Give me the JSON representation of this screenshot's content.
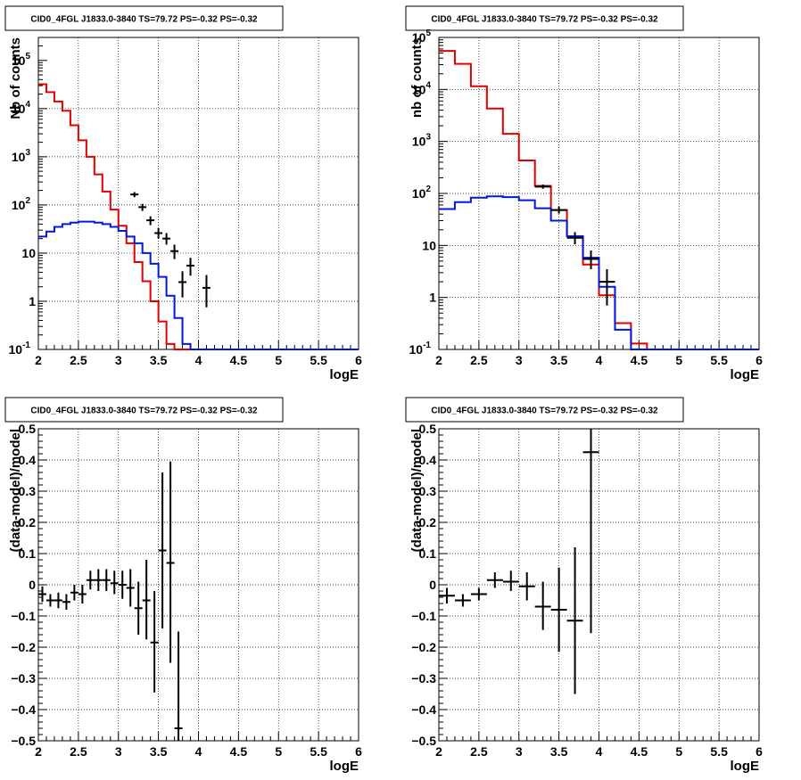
{
  "colors": {
    "data": "#000000",
    "model": "#e00000",
    "component": "#0018e0",
    "grid": "#000000"
  },
  "chart_data": [
    {
      "type": "line",
      "title": "CID0_4FGL J1833.0-3840 TS=79.72 PS=-0.32 PS=-0.32",
      "xlabel": "logE",
      "ylabel": "Nb of counts",
      "xlim": [
        2,
        6
      ],
      "ylim": [
        0.1,
        300000
      ],
      "yscale": "log",
      "grid": true,
      "x_ticks": [
        "2",
        "2.5",
        "3",
        "3.5",
        "4",
        "4.5",
        "5",
        "5.5",
        "6"
      ],
      "y_ticks": [
        {
          "base": "10",
          "exp": "-1"
        },
        {
          "base": "1",
          "exp": ""
        },
        {
          "base": "10",
          "exp": ""
        },
        {
          "base": "10",
          "exp": "2"
        },
        {
          "base": "10",
          "exp": "3"
        },
        {
          "base": "10",
          "exp": "4"
        },
        {
          "base": "10",
          "exp": "5"
        }
      ],
      "bin_edges": [
        2.0,
        2.1,
        2.2,
        2.3,
        2.4,
        2.5,
        2.6,
        2.7,
        2.8,
        2.9,
        3.0,
        3.1,
        3.2,
        3.3,
        3.4,
        3.5,
        3.6,
        3.7,
        3.8,
        3.9,
        4.0,
        4.1,
        4.2,
        4.3,
        4.4,
        4.5,
        4.6,
        4.7,
        4.8,
        4.9,
        5.0,
        5.1,
        5.2,
        5.3,
        5.4,
        5.5,
        5.6,
        5.7,
        5.8,
        5.9,
        6.0
      ],
      "series": [
        {
          "values": [
            32000,
            22000,
            14000,
            9000,
            4500,
            2200,
            1000,
            430,
            190,
            80,
            37,
            16,
            6.5,
            2.6,
            1.0,
            0.38,
            0.13,
            0.1,
            0.1,
            0.1,
            0.1,
            0.1,
            0.1,
            0.1,
            0.1,
            0.1,
            0.1,
            0.1,
            0.1,
            0.1,
            0.1,
            0.1,
            0.1,
            0.1,
            0.1,
            0.1,
            0.1,
            0.1,
            0.1,
            0.1
          ],
          "role": "model"
        },
        {
          "values": [
            22,
            28,
            35,
            40,
            43,
            45,
            45,
            43,
            40,
            35,
            29,
            22,
            16,
            10,
            6,
            3.2,
            1.3,
            0.45,
            0.13,
            0.1,
            0.1,
            0.1,
            0.1,
            0.1,
            0.1,
            0.1,
            0.1,
            0.1,
            0.1,
            0.1,
            0.1,
            0.1,
            0.1,
            0.1,
            0.1,
            0.1,
            0.1,
            0.1,
            0.1,
            0.1
          ],
          "role": "component"
        }
      ],
      "points": [
        {
          "x": 3.2,
          "y": 165,
          "lo": 145,
          "hi": 185
        },
        {
          "x": 3.3,
          "y": 90,
          "lo": 75,
          "hi": 105
        },
        {
          "x": 3.4,
          "y": 48,
          "lo": 38,
          "hi": 58
        },
        {
          "x": 3.5,
          "y": 26,
          "lo": 20,
          "hi": 33
        },
        {
          "x": 3.6,
          "y": 20,
          "lo": 15,
          "hi": 26
        },
        {
          "x": 3.7,
          "y": 11,
          "lo": 7.5,
          "hi": 15
        },
        {
          "x": 3.8,
          "y": 2.5,
          "lo": 1.2,
          "hi": 4.2
        },
        {
          "x": 3.9,
          "y": 5.5,
          "lo": 3.4,
          "hi": 8
        },
        {
          "x": 4.1,
          "y": 1.9,
          "lo": 0.75,
          "hi": 3.5
        }
      ]
    },
    {
      "type": "line",
      "title": "CID0_4FGL J1833.0-3840 TS=79.72 PS=-0.32 PS=-0.32",
      "xlabel": "logE",
      "ylabel": "nb of counts",
      "xlim": [
        2,
        6
      ],
      "ylim": [
        0.1,
        100000
      ],
      "yscale": "log",
      "grid": true,
      "x_ticks": [
        "2",
        "2.5",
        "3",
        "3.5",
        "4",
        "4.5",
        "5",
        "5.5",
        "6"
      ],
      "y_ticks": [
        {
          "base": "10",
          "exp": "-1"
        },
        {
          "base": "1",
          "exp": ""
        },
        {
          "base": "10",
          "exp": ""
        },
        {
          "base": "10",
          "exp": "2"
        },
        {
          "base": "10",
          "exp": "3"
        },
        {
          "base": "10",
          "exp": "4"
        },
        {
          "base": "10",
          "exp": "5"
        }
      ],
      "bin_edges": [
        2.0,
        2.2,
        2.4,
        2.6,
        2.8,
        3.0,
        3.2,
        3.4,
        3.6,
        3.8,
        4.0,
        4.2,
        4.4,
        4.6,
        4.8,
        5.0,
        5.2,
        5.4,
        5.6,
        5.8,
        6.0
      ],
      "series": [
        {
          "values": [
            55000,
            31000,
            11500,
            4300,
            1400,
            430,
            140,
            48,
            15,
            4.3,
            1.1,
            0.32,
            0.13,
            0.1,
            0.1,
            0.1,
            0.1,
            0.1,
            0.1,
            0.1
          ],
          "role": "model"
        },
        {
          "values": [
            50,
            68,
            83,
            88,
            85,
            74,
            52,
            30,
            15,
            5.8,
            1.6,
            0.24,
            0.1,
            0.1,
            0.1,
            0.1,
            0.1,
            0.1,
            0.1,
            0.1
          ],
          "role": "component"
        }
      ],
      "points": [
        {
          "x": 3.3,
          "y": 135,
          "lo": 123,
          "hi": 148
        },
        {
          "x": 3.5,
          "y": 48,
          "lo": 41,
          "hi": 56
        },
        {
          "x": 3.7,
          "y": 14,
          "lo": 10.5,
          "hi": 18
        },
        {
          "x": 3.9,
          "y": 5.5,
          "lo": 3.5,
          "hi": 8
        },
        {
          "x": 4.1,
          "y": 2,
          "lo": 0.7,
          "hi": 3.5
        }
      ]
    },
    {
      "type": "scatter",
      "title": "CID0_4FGL J1833.0-3840 TS=79.72 PS=-0.32 PS=-0.32",
      "xlabel": "logE",
      "ylabel": "(data-model)/model",
      "xlim": [
        2,
        6
      ],
      "ylim": [
        -0.5,
        0.5
      ],
      "yscale": "linear",
      "grid": true,
      "x_ticks": [
        "2",
        "2.5",
        "3",
        "3.5",
        "4",
        "4.5",
        "5",
        "5.5",
        "6"
      ],
      "y_ticks": [
        "−0.5",
        "−0.4",
        "−0.3",
        "−0.2",
        "−0.1",
        "0",
        "0.1",
        "0.2",
        "0.3",
        "0.4",
        "0.5"
      ],
      "points": [
        {
          "x": 2.05,
          "y": -0.03,
          "dx": 0.05,
          "lo": -0.055,
          "hi": -0.005
        },
        {
          "x": 2.15,
          "y": -0.05,
          "dx": 0.05,
          "lo": -0.07,
          "hi": -0.03
        },
        {
          "x": 2.25,
          "y": -0.05,
          "dx": 0.05,
          "lo": -0.075,
          "hi": -0.025
        },
        {
          "x": 2.35,
          "y": -0.055,
          "dx": 0.05,
          "lo": -0.08,
          "hi": -0.03
        },
        {
          "x": 2.45,
          "y": -0.025,
          "dx": 0.05,
          "lo": -0.05,
          "hi": 0.0
        },
        {
          "x": 2.55,
          "y": -0.03,
          "dx": 0.05,
          "lo": -0.06,
          "hi": 0.0
        },
        {
          "x": 2.65,
          "y": 0.015,
          "dx": 0.05,
          "lo": -0.015,
          "hi": 0.045
        },
        {
          "x": 2.75,
          "y": 0.015,
          "dx": 0.05,
          "lo": -0.02,
          "hi": 0.05
        },
        {
          "x": 2.85,
          "y": 0.015,
          "dx": 0.05,
          "lo": -0.02,
          "hi": 0.05
        },
        {
          "x": 2.95,
          "y": 0.005,
          "dx": 0.05,
          "lo": -0.03,
          "hi": 0.045
        },
        {
          "x": 3.05,
          "y": 0.0,
          "dx": 0.05,
          "lo": -0.045,
          "hi": 0.045
        },
        {
          "x": 3.15,
          "y": -0.01,
          "dx": 0.05,
          "lo": -0.07,
          "hi": 0.05
        },
        {
          "x": 3.25,
          "y": -0.075,
          "dx": 0.05,
          "lo": -0.16,
          "hi": 0.01
        },
        {
          "x": 3.35,
          "y": -0.05,
          "dx": 0.05,
          "lo": -0.175,
          "hi": 0.08
        },
        {
          "x": 3.45,
          "y": -0.185,
          "dx": 0.05,
          "lo": -0.345,
          "hi": -0.02
        },
        {
          "x": 3.55,
          "y": 0.11,
          "dx": 0.05,
          "lo": -0.14,
          "hi": 0.36
        },
        {
          "x": 3.65,
          "y": 0.07,
          "dx": 0.05,
          "lo": -0.25,
          "hi": 0.395
        },
        {
          "x": 3.75,
          "y": -0.46,
          "dx": 0.05,
          "lo": -0.5,
          "hi": -0.15
        }
      ]
    },
    {
      "type": "scatter",
      "title": "CID0_4FGL J1833.0-3840 TS=79.72 PS=-0.32 PS=-0.32",
      "xlabel": "logE",
      "ylabel": "(data-model)/model",
      "xlim": [
        2,
        6
      ],
      "ylim": [
        -0.5,
        0.5
      ],
      "yscale": "linear",
      "grid": true,
      "x_ticks": [
        "2",
        "2.5",
        "3",
        "3.5",
        "4",
        "4.5",
        "5",
        "5.5",
        "6"
      ],
      "y_ticks": [
        "−0.5",
        "−0.4",
        "−0.3",
        "−0.2",
        "−0.1",
        "0",
        "0.1",
        "0.2",
        "0.3",
        "0.4",
        "0.5"
      ],
      "points": [
        {
          "x": 2.1,
          "y": -0.035,
          "dx": 0.1,
          "lo": -0.06,
          "hi": -0.01
        },
        {
          "x": 2.3,
          "y": -0.05,
          "dx": 0.1,
          "lo": -0.07,
          "hi": -0.03
        },
        {
          "x": 2.5,
          "y": -0.03,
          "dx": 0.1,
          "lo": -0.05,
          "hi": -0.01
        },
        {
          "x": 2.7,
          "y": 0.015,
          "dx": 0.1,
          "lo": -0.01,
          "hi": 0.04
        },
        {
          "x": 2.9,
          "y": 0.01,
          "dx": 0.1,
          "lo": -0.02,
          "hi": 0.045
        },
        {
          "x": 3.1,
          "y": -0.005,
          "dx": 0.1,
          "lo": -0.05,
          "hi": 0.04
        },
        {
          "x": 3.3,
          "y": -0.07,
          "dx": 0.1,
          "lo": -0.145,
          "hi": 0.01
        },
        {
          "x": 3.5,
          "y": -0.08,
          "dx": 0.1,
          "lo": -0.215,
          "hi": 0.055
        },
        {
          "x": 3.7,
          "y": -0.115,
          "dx": 0.1,
          "lo": -0.35,
          "hi": 0.12
        },
        {
          "x": 3.9,
          "y": 0.425,
          "dx": 0.1,
          "lo": -0.155,
          "hi": 0.5
        }
      ]
    }
  ]
}
